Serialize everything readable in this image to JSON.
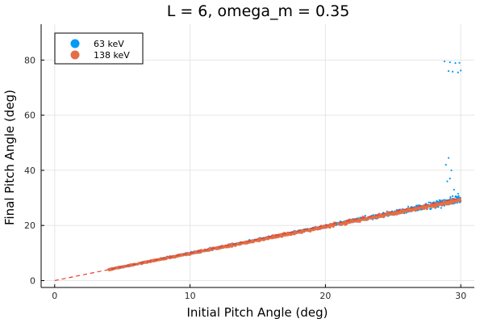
{
  "chart_data": {
    "type": "scatter",
    "title": "L = 6, omega_m = 0.35",
    "xlabel": "Initial Pitch Angle (deg)",
    "ylabel": "Final Pitch Angle (deg)",
    "xlim": [
      -1,
      31
    ],
    "ylim": [
      -2.5,
      93
    ],
    "xticks": [
      0,
      10,
      20,
      30
    ],
    "yticks": [
      0,
      20,
      40,
      60,
      80
    ],
    "xtick_labels": [
      "0",
      "10",
      "20",
      "30"
    ],
    "ytick_labels": [
      "0",
      "20",
      "40",
      "60",
      "80"
    ],
    "grid": true,
    "legend_position": "top-left",
    "reference_line": {
      "x": [
        0,
        30
      ],
      "y": [
        0,
        30
      ],
      "style": "dashed",
      "color": "#e8392b"
    },
    "series": [
      {
        "name": "63 keV",
        "color": "#009af9",
        "trend": {
          "x": [
            4,
            30
          ],
          "y": [
            4,
            29.5
          ]
        },
        "spread_x": [
          4,
          10,
          20,
          26,
          30
        ],
        "spread_y": [
          0.3,
          0.4,
          0.5,
          0.9,
          1.6
        ],
        "outliers": [
          [
            28.9,
            42
          ],
          [
            29.1,
            44.5
          ],
          [
            29.3,
            40
          ],
          [
            29.2,
            37
          ],
          [
            29.5,
            33
          ],
          [
            29.8,
            31.5
          ],
          [
            29.0,
            36
          ],
          [
            28.8,
            79.5
          ],
          [
            29.2,
            79.2
          ],
          [
            29.6,
            78.9
          ],
          [
            29.9,
            79.0
          ],
          [
            29.1,
            76
          ],
          [
            29.4,
            75.8
          ],
          [
            29.8,
            75.5
          ],
          [
            30.0,
            76.2
          ]
        ]
      },
      {
        "name": "138 keV",
        "color": "#e26f46",
        "trend": {
          "x": [
            4,
            30
          ],
          "y": [
            4,
            29.3
          ]
        },
        "spread_x": [
          4,
          30
        ],
        "spread_y": [
          0.2,
          0.7
        ]
      }
    ]
  }
}
